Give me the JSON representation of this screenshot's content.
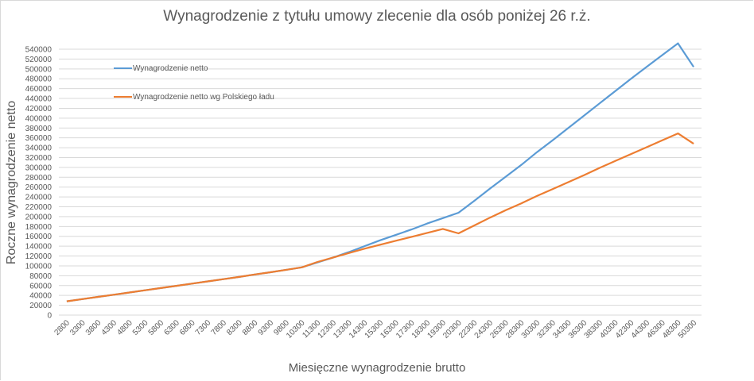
{
  "chart_data": {
    "type": "line",
    "title": "Wynagrodzenie z tytułu umowy zlecenie dla osób poniżej 26 r.ż.",
    "xlabel": "Miesięczne wynagrodzenie brutto",
    "ylabel": "Roczne wynagrodzenie netto",
    "ylim": [
      0,
      540000
    ],
    "ytick_step": 20000,
    "yticks": [
      "0",
      "20000",
      "40000",
      "60000",
      "80000",
      "100000",
      "120000",
      "140000",
      "160000",
      "180000",
      "200000",
      "220000",
      "240000",
      "260000",
      "280000",
      "300000",
      "320000",
      "340000",
      "360000",
      "380000",
      "400000",
      "420000",
      "440000",
      "460000",
      "480000",
      "500000",
      "520000",
      "540000"
    ],
    "grid": true,
    "legend_position": "top-left inside",
    "categories": [
      "2800",
      "3300",
      "3800",
      "4300",
      "4800",
      "5300",
      "5800",
      "6300",
      "6800",
      "7300",
      "7800",
      "8300",
      "8800",
      "9300",
      "9800",
      "10300",
      "11300",
      "12300",
      "13300",
      "14300",
      "15300",
      "16300",
      "17300",
      "18300",
      "19300",
      "20300",
      "22300",
      "24300",
      "26300",
      "28300",
      "30300",
      "32300",
      "34300",
      "36300",
      "38300",
      "40300",
      "42300",
      "44300",
      "46300",
      "48300",
      "50300"
    ],
    "series": [
      {
        "name": "Wynagrodzenie netto",
        "color": "#5b9bd5",
        "values": [
          28000,
          32500,
          37000,
          41500,
          46000,
          50500,
          55000,
          59500,
          64000,
          68500,
          73000,
          77500,
          82500,
          87000,
          92000,
          97000,
          107000,
          117000,
          128000,
          140000,
          152000,
          163000,
          174000,
          186000,
          197000,
          208000,
          232000,
          257000,
          281000,
          305000,
          331000,
          355000,
          380000,
          405000,
          430000,
          455000,
          480000,
          504000,
          528000,
          552000,
          504000
        ]
      },
      {
        "name": "Wynagrodzenie netto wg Polskiego ładu",
        "color": "#ed7d31",
        "values": [
          28000,
          32500,
          37000,
          41500,
          46000,
          50500,
          55000,
          59500,
          64000,
          68500,
          73000,
          77500,
          82500,
          87000,
          92000,
          97000,
          108000,
          117000,
          126000,
          135000,
          143000,
          151000,
          159000,
          167000,
          175000,
          166000,
          182000,
          198000,
          213000,
          227000,
          242000,
          256000,
          270000,
          284000,
          299000,
          313000,
          327000,
          341000,
          355000,
          369000,
          348000
        ]
      }
    ]
  },
  "legend": {
    "item_0": "Wynagrodzenie netto",
    "item_1": "Wynagrodzenie netto wg Polskiego ładu"
  }
}
